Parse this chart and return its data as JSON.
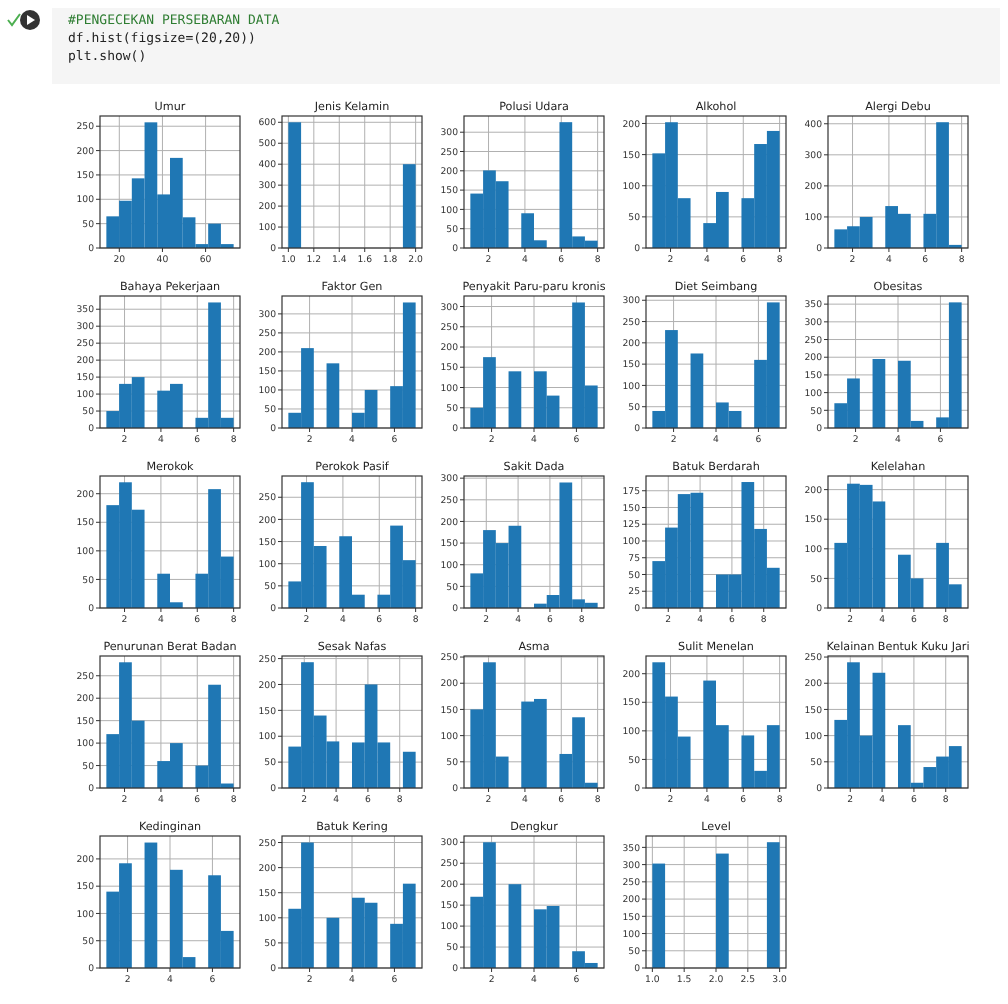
{
  "chart_data": [
    {
      "type": "other",
      "annotations": [
        "#PENGECEKAN PERSEBARAN DATA",
        "df.hist(figsize=(20,20))",
        "plt.show()"
      ]
    },
    {
      "type": "histogram",
      "title": "Umur",
      "color": "#1f77b4",
      "grid": true,
      "bins": [
        14,
        19.9,
        25.8,
        31.7,
        37.6,
        43.5,
        49.4,
        55.3,
        61.2,
        67.1,
        73
      ],
      "values": [
        65,
        97,
        143,
        258,
        110,
        185,
        63,
        8,
        50,
        8
      ],
      "xlim": [
        11.05,
        75.95
      ],
      "xticks": [
        20,
        40,
        60
      ],
      "ylim": [
        0,
        271
      ],
      "yticks": [
        0,
        50,
        100,
        150,
        200,
        250
      ]
    },
    {
      "type": "histogram",
      "title": "Jenis Kelamin",
      "color": "#1f77b4",
      "grid": true,
      "bins": [
        1,
        1.1,
        1.2,
        1.3,
        1.4,
        1.5,
        1.6,
        1.7,
        1.8,
        1.9,
        2
      ],
      "values": [
        600,
        0,
        0,
        0,
        0,
        0,
        0,
        0,
        0,
        400
      ],
      "xlim": [
        0.95,
        2.05
      ],
      "xticks": [
        {
          "value": 1,
          "label": "1.0"
        },
        {
          "value": 1.2,
          "label": "1.2"
        },
        {
          "value": 1.4,
          "label": "1.4"
        },
        {
          "value": 1.6,
          "label": "1.6"
        },
        {
          "value": 1.8,
          "label": "1.8"
        },
        {
          "value": 2,
          "label": "2.0"
        }
      ],
      "ylim": [
        0,
        630
      ],
      "yticks": [
        0,
        100,
        200,
        300,
        400,
        500,
        600
      ]
    },
    {
      "type": "histogram",
      "title": "Polusi Udara",
      "color": "#1f77b4",
      "grid": true,
      "bins": [
        1,
        1.7,
        2.4,
        3.1,
        3.8,
        4.5,
        5.2,
        5.9,
        6.6,
        7.3,
        8
      ],
      "values": [
        141,
        201,
        173,
        0,
        90,
        20,
        0,
        326,
        30,
        19
      ],
      "xlim": [
        0.65,
        8.35
      ],
      "xticks": [
        2,
        4,
        6,
        8
      ],
      "ylim": [
        0,
        342
      ],
      "yticks": [
        0,
        50,
        100,
        150,
        200,
        250,
        300
      ]
    },
    {
      "type": "histogram",
      "title": "Alkohol",
      "color": "#1f77b4",
      "grid": true,
      "bins": [
        1,
        1.7,
        2.4,
        3.1,
        3.8,
        4.5,
        5.2,
        5.9,
        6.6,
        7.3,
        8
      ],
      "values": [
        152,
        202,
        80,
        0,
        40,
        90,
        0,
        80,
        167,
        188
      ],
      "xlim": [
        0.65,
        8.35
      ],
      "xticks": [
        2,
        4,
        6,
        8
      ],
      "ylim": [
        0,
        212
      ],
      "yticks": [
        0,
        50,
        100,
        150,
        200
      ]
    },
    {
      "type": "histogram",
      "title": "Alergi Debu",
      "color": "#1f77b4",
      "grid": true,
      "bins": [
        1,
        1.7,
        2.4,
        3.1,
        3.8,
        4.5,
        5.2,
        5.9,
        6.6,
        7.3,
        8
      ],
      "values": [
        60,
        70,
        100,
        0,
        135,
        110,
        0,
        110,
        405,
        10
      ],
      "xlim": [
        0.65,
        8.35
      ],
      "xticks": [
        2,
        4,
        6,
        8
      ],
      "ylim": [
        0,
        425
      ],
      "yticks": [
        0,
        100,
        200,
        300,
        400
      ]
    },
    {
      "type": "histogram",
      "title": "Bahaya Pekerjaan",
      "color": "#1f77b4",
      "grid": true,
      "bins": [
        1,
        1.7,
        2.4,
        3.1,
        3.8,
        4.5,
        5.2,
        5.9,
        6.6,
        7.3,
        8
      ],
      "values": [
        50,
        130,
        150,
        0,
        110,
        130,
        0,
        30,
        370,
        30
      ],
      "xlim": [
        0.65,
        8.35
      ],
      "xticks": [
        2,
        4,
        6,
        8
      ],
      "ylim": [
        0,
        389
      ],
      "yticks": [
        0,
        50,
        100,
        150,
        200,
        250,
        300,
        350
      ]
    },
    {
      "type": "histogram",
      "title": "Faktor Gen",
      "color": "#1f77b4",
      "grid": true,
      "bins": [
        1,
        1.6,
        2.2,
        2.8,
        3.4,
        4,
        4.6,
        5.2,
        5.8,
        6.4,
        7
      ],
      "values": [
        40,
        210,
        0,
        170,
        0,
        40,
        100,
        0,
        110,
        330
      ],
      "xlim": [
        0.7,
        7.3
      ],
      "xticks": [
        2,
        4,
        6
      ],
      "ylim": [
        0,
        347
      ],
      "yticks": [
        0,
        50,
        100,
        150,
        200,
        250,
        300
      ]
    },
    {
      "type": "histogram",
      "title": "Penyakit Paru-paru kronis",
      "color": "#1f77b4",
      "grid": true,
      "bins": [
        1,
        1.6,
        2.2,
        2.8,
        3.4,
        4,
        4.6,
        5.2,
        5.8,
        6.4,
        7
      ],
      "values": [
        50,
        175,
        0,
        140,
        0,
        140,
        80,
        0,
        310,
        105
      ],
      "xlim": [
        0.7,
        7.3
      ],
      "xticks": [
        2,
        4,
        6
      ],
      "ylim": [
        0,
        326
      ],
      "yticks": [
        0,
        50,
        100,
        150,
        200,
        250,
        300
      ]
    },
    {
      "type": "histogram",
      "title": "Diet Seimbang",
      "color": "#1f77b4",
      "grid": true,
      "bins": [
        1,
        1.6,
        2.2,
        2.8,
        3.4,
        4,
        4.6,
        5.2,
        5.8,
        6.4,
        7
      ],
      "values": [
        40,
        230,
        0,
        175,
        0,
        60,
        40,
        0,
        160,
        295
      ],
      "xlim": [
        0.7,
        7.3
      ],
      "xticks": [
        2,
        4,
        6
      ],
      "ylim": [
        0,
        310
      ],
      "yticks": [
        0,
        50,
        100,
        150,
        200,
        250,
        300
      ]
    },
    {
      "type": "histogram",
      "title": "Obesitas",
      "color": "#1f77b4",
      "grid": true,
      "bins": [
        1,
        1.6,
        2.2,
        2.8,
        3.4,
        4,
        4.6,
        5.2,
        5.8,
        6.4,
        7
      ],
      "values": [
        70,
        140,
        0,
        195,
        0,
        190,
        20,
        0,
        30,
        355
      ],
      "xlim": [
        0.7,
        7.3
      ],
      "xticks": [
        2,
        4,
        6
      ],
      "ylim": [
        0,
        373
      ],
      "yticks": [
        0,
        50,
        100,
        150,
        200,
        250,
        300,
        350
      ]
    },
    {
      "type": "histogram",
      "title": "Merokok",
      "color": "#1f77b4",
      "grid": true,
      "bins": [
        1,
        1.7,
        2.4,
        3.1,
        3.8,
        4.5,
        5.2,
        5.9,
        6.6,
        7.3,
        8
      ],
      "values": [
        180,
        220,
        172,
        0,
        60,
        10,
        0,
        60,
        208,
        90
      ],
      "xlim": [
        0.65,
        8.35
      ],
      "xticks": [
        2,
        4,
        6,
        8
      ],
      "ylim": [
        0,
        231
      ],
      "yticks": [
        0,
        50,
        100,
        150,
        200
      ]
    },
    {
      "type": "histogram",
      "title": "Perokok Pasif",
      "color": "#1f77b4",
      "grid": true,
      "bins": [
        1,
        1.7,
        2.4,
        3.1,
        3.8,
        4.5,
        5.2,
        5.9,
        6.6,
        7.3,
        8
      ],
      "values": [
        60,
        284,
        140,
        0,
        162,
        30,
        0,
        30,
        186,
        108
      ],
      "xlim": [
        0.65,
        8.35
      ],
      "xticks": [
        2,
        4,
        6,
        8
      ],
      "ylim": [
        0,
        298
      ],
      "yticks": [
        0,
        50,
        100,
        150,
        200,
        250
      ]
    },
    {
      "type": "histogram",
      "title": "Sakit Dada",
      "color": "#1f77b4",
      "grid": true,
      "bins": [
        1,
        1.8,
        2.6,
        3.4,
        4.2,
        5,
        5.8,
        6.6,
        7.4,
        8.2,
        9
      ],
      "values": [
        80,
        180,
        150,
        190,
        0,
        10,
        30,
        290,
        20,
        12
      ],
      "xlim": [
        0.6,
        9.4
      ],
      "xticks": [
        2,
        4,
        6,
        8
      ],
      "ylim": [
        0,
        305
      ],
      "yticks": [
        0,
        50,
        100,
        150,
        200,
        250,
        300
      ]
    },
    {
      "type": "histogram",
      "title": "Batuk Berdarah",
      "color": "#1f77b4",
      "grid": true,
      "bins": [
        1,
        1.8,
        2.6,
        3.4,
        4.2,
        5,
        5.8,
        6.6,
        7.4,
        8.2,
        9
      ],
      "values": [
        70,
        120,
        170,
        172,
        0,
        50,
        50,
        188,
        118,
        60
      ],
      "xlim": [
        0.6,
        9.4
      ],
      "xticks": [
        2,
        4,
        6,
        8
      ],
      "ylim": [
        0,
        197
      ],
      "yticks": [
        0,
        25,
        50,
        75,
        100,
        125,
        150,
        175
      ]
    },
    {
      "type": "histogram",
      "title": "Kelelahan",
      "color": "#1f77b4",
      "grid": true,
      "bins": [
        1,
        1.8,
        2.6,
        3.4,
        4.2,
        5,
        5.8,
        6.6,
        7.4,
        8.2,
        9
      ],
      "values": [
        110,
        210,
        208,
        180,
        0,
        90,
        50,
        0,
        110,
        40
      ],
      "xlim": [
        0.6,
        9.4
      ],
      "xticks": [
        2,
        4,
        6,
        8
      ],
      "ylim": [
        0,
        223
      ],
      "yticks": [
        0,
        50,
        100,
        150,
        200
      ]
    },
    {
      "type": "histogram",
      "title": "Penurunan Berat Badan",
      "color": "#1f77b4",
      "grid": true,
      "bins": [
        1,
        1.7,
        2.4,
        3.1,
        3.8,
        4.5,
        5.2,
        5.9,
        6.6,
        7.3,
        8
      ],
      "values": [
        120,
        280,
        150,
        0,
        60,
        100,
        0,
        50,
        230,
        10
      ],
      "xlim": [
        0.65,
        8.35
      ],
      "xticks": [
        2,
        4,
        6,
        8
      ],
      "ylim": [
        0,
        294
      ],
      "yticks": [
        0,
        50,
        100,
        150,
        200,
        250
      ]
    },
    {
      "type": "histogram",
      "title": "Sesak Nafas",
      "color": "#1f77b4",
      "grid": true,
      "bins": [
        1,
        1.8,
        2.6,
        3.4,
        4.2,
        5,
        5.8,
        6.6,
        7.4,
        8.2,
        9
      ],
      "values": [
        80,
        243,
        140,
        90,
        0,
        88,
        200,
        88,
        0,
        70
      ],
      "xlim": [
        0.6,
        9.4
      ],
      "xticks": [
        2,
        4,
        6,
        8
      ],
      "ylim": [
        0,
        255
      ],
      "yticks": [
        0,
        50,
        100,
        150,
        200,
        250
      ]
    },
    {
      "type": "histogram",
      "title": "Asma",
      "color": "#1f77b4",
      "grid": true,
      "bins": [
        1,
        1.7,
        2.4,
        3.1,
        3.8,
        4.5,
        5.2,
        5.9,
        6.6,
        7.3,
        8
      ],
      "values": [
        150,
        240,
        60,
        0,
        165,
        170,
        0,
        65,
        135,
        10
      ],
      "xlim": [
        0.65,
        8.35
      ],
      "xticks": [
        2,
        4,
        6,
        8
      ],
      "ylim": [
        0,
        252
      ],
      "yticks": [
        0,
        50,
        100,
        150,
        200,
        250
      ]
    },
    {
      "type": "histogram",
      "title": "Sulit Menelan",
      "color": "#1f77b4",
      "grid": true,
      "bins": [
        1,
        1.7,
        2.4,
        3.1,
        3.8,
        4.5,
        5.2,
        5.9,
        6.6,
        7.3,
        8
      ],
      "values": [
        220,
        160,
        90,
        0,
        188,
        110,
        0,
        92,
        30,
        110
      ],
      "xlim": [
        0.65,
        8.35
      ],
      "xticks": [
        2,
        4,
        6,
        8
      ],
      "ylim": [
        0,
        231
      ],
      "yticks": [
        0,
        50,
        100,
        150,
        200
      ]
    },
    {
      "type": "histogram",
      "title": "Kelainan Bentuk Kuku Jari",
      "color": "#1f77b4",
      "grid": true,
      "bins": [
        1,
        1.8,
        2.6,
        3.4,
        4.2,
        5,
        5.8,
        6.6,
        7.4,
        8.2,
        9
      ],
      "values": [
        130,
        240,
        100,
        220,
        0,
        120,
        10,
        40,
        60,
        80
      ],
      "xlim": [
        0.6,
        9.4
      ],
      "xticks": [
        2,
        4,
        6,
        8
      ],
      "ylim": [
        0,
        252
      ],
      "yticks": [
        0,
        50,
        100,
        150,
        200,
        250
      ]
    },
    {
      "type": "histogram",
      "title": "Kedinginan",
      "color": "#1f77b4",
      "grid": true,
      "bins": [
        1,
        1.6,
        2.2,
        2.8,
        3.4,
        4,
        4.6,
        5.2,
        5.8,
        6.4,
        7
      ],
      "values": [
        140,
        192,
        0,
        230,
        0,
        180,
        20,
        0,
        170,
        68
      ],
      "xlim": [
        0.7,
        7.3
      ],
      "xticks": [
        2,
        4,
        6
      ],
      "ylim": [
        0,
        242
      ],
      "yticks": [
        0,
        50,
        100,
        150,
        200
      ]
    },
    {
      "type": "histogram",
      "title": "Batuk Kering",
      "color": "#1f77b4",
      "grid": true,
      "bins": [
        1,
        1.6,
        2.2,
        2.8,
        3.4,
        4,
        4.6,
        5.2,
        5.8,
        6.4,
        7
      ],
      "values": [
        118,
        250,
        0,
        100,
        0,
        140,
        130,
        0,
        88,
        168
      ],
      "xlim": [
        0.7,
        7.3
      ],
      "xticks": [
        2,
        4,
        6
      ],
      "ylim": [
        0,
        263
      ],
      "yticks": [
        0,
        50,
        100,
        150,
        200,
        250
      ]
    },
    {
      "type": "histogram",
      "title": "Dengkur",
      "color": "#1f77b4",
      "grid": true,
      "bins": [
        1,
        1.6,
        2.2,
        2.8,
        3.4,
        4,
        4.6,
        5.2,
        5.8,
        6.4,
        7
      ],
      "values": [
        170,
        300,
        0,
        200,
        0,
        140,
        148,
        0,
        40,
        12
      ],
      "xlim": [
        0.7,
        7.3
      ],
      "xticks": [
        2,
        4,
        6
      ],
      "ylim": [
        0,
        315
      ],
      "yticks": [
        0,
        50,
        100,
        150,
        200,
        250,
        300
      ]
    },
    {
      "type": "histogram",
      "title": "Level",
      "color": "#1f77b4",
      "grid": true,
      "bins": [
        1,
        1.2,
        1.4,
        1.6,
        1.8,
        2,
        2.2,
        2.4,
        2.6,
        2.8,
        3
      ],
      "values": [
        303,
        0,
        0,
        0,
        0,
        332,
        0,
        0,
        0,
        365
      ],
      "xlim": [
        0.9,
        3.1
      ],
      "xticks": [
        {
          "value": 1,
          "label": "1.0"
        },
        {
          "value": 1.5,
          "label": "1.5"
        },
        {
          "value": 2,
          "label": "2.0"
        },
        {
          "value": 2.5,
          "label": "2.5"
        },
        {
          "value": 3,
          "label": "3.0"
        }
      ],
      "ylim": [
        0,
        383
      ],
      "yticks": [
        0,
        50,
        100,
        150,
        200,
        250,
        300,
        350
      ]
    }
  ]
}
